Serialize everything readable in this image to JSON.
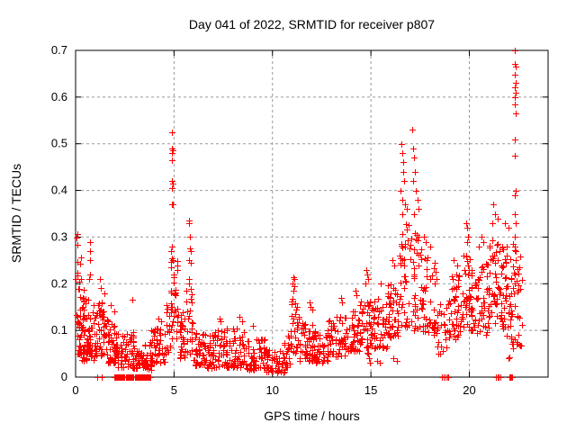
{
  "chart_data": {
    "type": "scatter",
    "title": "Day 041 of 2022, SRMTID for receiver p807",
    "xlabel": "GPS time / hours",
    "ylabel": "SRMTID / TECUs",
    "xlim": [
      0,
      24
    ],
    "ylim": [
      0,
      0.7
    ],
    "xticks": [
      0,
      5,
      10,
      15,
      20
    ],
    "yticks": [
      0,
      0.1,
      0.2,
      0.3,
      0.4,
      0.5,
      0.6,
      0.7
    ],
    "grid": true,
    "legend_position": "none",
    "marker": {
      "glyph": "plus",
      "color": "#ff0000",
      "size": 7
    },
    "grid_color": "#999999",
    "border_color": "#000000",
    "background_color": "#ffffff",
    "clusters": [
      [
        0.02,
        0.3,
        16,
        0.1,
        0.335,
        1.0
      ],
      [
        0.05,
        0.65,
        55,
        0.05,
        0.19,
        1.7
      ],
      [
        0.3,
        1.1,
        60,
        0.035,
        0.155,
        1.6
      ],
      [
        1.0,
        1.6,
        48,
        0.045,
        0.165,
        1.6
      ],
      [
        1.6,
        2.1,
        40,
        0.03,
        0.12,
        1.5
      ],
      [
        2.05,
        2.6,
        40,
        0.02,
        0.095,
        1.5
      ],
      [
        2.6,
        3.1,
        38,
        0.02,
        0.1,
        1.5
      ],
      [
        3.1,
        3.85,
        48,
        0.015,
        0.08,
        1.4
      ],
      [
        3.85,
        4.6,
        45,
        0.03,
        0.105,
        1.5
      ],
      [
        4.6,
        4.85,
        18,
        0.05,
        0.16,
        1.3
      ],
      [
        4.82,
        5.2,
        30,
        0.08,
        0.26,
        1.2
      ],
      [
        5.2,
        5.6,
        28,
        0.04,
        0.14,
        1.5
      ],
      [
        5.6,
        5.95,
        24,
        0.05,
        0.22,
        1.3
      ],
      [
        5.95,
        6.6,
        45,
        0.025,
        0.095,
        1.5
      ],
      [
        6.6,
        7.6,
        62,
        0.02,
        0.1,
        1.6
      ],
      [
        7.6,
        8.6,
        62,
        0.02,
        0.105,
        1.6
      ],
      [
        8.6,
        9.6,
        58,
        0.015,
        0.085,
        1.5
      ],
      [
        9.6,
        10.6,
        58,
        0.01,
        0.06,
        1.4
      ],
      [
        10.6,
        10.95,
        20,
        0.02,
        0.09,
        1.4
      ],
      [
        10.9,
        11.35,
        28,
        0.05,
        0.19,
        1.2
      ],
      [
        11.35,
        12.1,
        50,
        0.035,
        0.12,
        1.5
      ],
      [
        12.1,
        12.8,
        45,
        0.03,
        0.1,
        1.5
      ],
      [
        12.8,
        13.7,
        55,
        0.045,
        0.13,
        1.5
      ],
      [
        13.7,
        14.4,
        46,
        0.055,
        0.145,
        1.4
      ],
      [
        14.4,
        15.1,
        46,
        0.05,
        0.165,
        1.3
      ],
      [
        15.1,
        15.8,
        45,
        0.06,
        0.17,
        1.3
      ],
      [
        15.8,
        16.45,
        45,
        0.085,
        0.2,
        1.3
      ],
      [
        16.45,
        17.05,
        40,
        0.1,
        0.33,
        1.2
      ],
      [
        17.0,
        17.6,
        36,
        0.1,
        0.33,
        1.2
      ],
      [
        17.6,
        18.35,
        46,
        0.09,
        0.26,
        1.3
      ],
      [
        18.35,
        18.95,
        24,
        0.05,
        0.16,
        1.3
      ],
      [
        18.95,
        19.6,
        42,
        0.08,
        0.22,
        1.3
      ],
      [
        19.6,
        20.25,
        46,
        0.1,
        0.27,
        1.2
      ],
      [
        20.25,
        21.0,
        50,
        0.09,
        0.25,
        1.3
      ],
      [
        21.0,
        21.65,
        46,
        0.11,
        0.3,
        1.2
      ],
      [
        21.65,
        22.25,
        44,
        0.1,
        0.3,
        1.2
      ],
      [
        21.9,
        22.25,
        8,
        0.04,
        0.09,
        1.0
      ],
      [
        22.2,
        22.7,
        28,
        0.06,
        0.28,
        1.3
      ]
    ],
    "points": [
      [
        0.72,
        0.25
      ],
      [
        0.73,
        0.29
      ],
      [
        0.75,
        0.27
      ],
      [
        0.74,
        0.22
      ],
      [
        0.7,
        0.21
      ],
      [
        1.24,
        0.21
      ],
      [
        1.27,
        0.19
      ],
      [
        1.45,
        0.18
      ],
      [
        1.8,
        0.155
      ],
      [
        1.95,
        0.14
      ],
      [
        2.9,
        0.165
      ],
      [
        4.2,
        0.125
      ],
      [
        4.35,
        0.12
      ],
      [
        4.88,
        0.525
      ],
      [
        4.9,
        0.49
      ],
      [
        4.92,
        0.485
      ],
      [
        4.89,
        0.48
      ],
      [
        4.91,
        0.465
      ],
      [
        4.88,
        0.42
      ],
      [
        4.93,
        0.415
      ],
      [
        4.9,
        0.405
      ],
      [
        4.87,
        0.37
      ],
      [
        4.92,
        0.37
      ],
      [
        4.9,
        0.28
      ],
      [
        4.86,
        0.27
      ],
      [
        4.94,
        0.25
      ],
      [
        5.75,
        0.335
      ],
      [
        5.78,
        0.33
      ],
      [
        5.8,
        0.3
      ],
      [
        5.82,
        0.275
      ],
      [
        5.85,
        0.27
      ],
      [
        5.77,
        0.25
      ],
      [
        5.83,
        0.245
      ],
      [
        7.3,
        0.125
      ],
      [
        7.35,
        0.12
      ],
      [
        8.3,
        0.13
      ],
      [
        8.45,
        0.12
      ],
      [
        9.0,
        0.11
      ],
      [
        11.0,
        0.2
      ],
      [
        11.05,
        0.215
      ],
      [
        11.1,
        0.21
      ],
      [
        11.12,
        0.195
      ],
      [
        11.08,
        0.185
      ],
      [
        11.9,
        0.16
      ],
      [
        11.95,
        0.15
      ],
      [
        12.0,
        0.145
      ],
      [
        13.5,
        0.17
      ],
      [
        13.55,
        0.16
      ],
      [
        14.2,
        0.185
      ],
      [
        14.25,
        0.175
      ],
      [
        14.7,
        0.2
      ],
      [
        14.75,
        0.23
      ],
      [
        14.8,
        0.22
      ],
      [
        14.85,
        0.21
      ],
      [
        14.9,
        0.04
      ],
      [
        14.95,
        0.03
      ],
      [
        15.3,
        0.035
      ],
      [
        15.45,
        0.03
      ],
      [
        16.15,
        0.04
      ],
      [
        16.3,
        0.035
      ],
      [
        15.5,
        0.2
      ],
      [
        16.1,
        0.25
      ],
      [
        16.2,
        0.24
      ],
      [
        16.5,
        0.4
      ],
      [
        16.55,
        0.5
      ],
      [
        16.58,
        0.38
      ],
      [
        16.6,
        0.48
      ],
      [
        16.62,
        0.46
      ],
      [
        16.65,
        0.44
      ],
      [
        16.7,
        0.42
      ],
      [
        16.75,
        0.37
      ],
      [
        16.8,
        0.36
      ],
      [
        16.6,
        0.35
      ],
      [
        17.1,
        0.53
      ],
      [
        17.15,
        0.49
      ],
      [
        17.2,
        0.47
      ],
      [
        17.25,
        0.44
      ],
      [
        17.12,
        0.42
      ],
      [
        17.3,
        0.4
      ],
      [
        17.35,
        0.38
      ],
      [
        17.4,
        0.36
      ],
      [
        17.2,
        0.35
      ],
      [
        17.7,
        0.3
      ],
      [
        17.8,
        0.29
      ],
      [
        18.0,
        0.28
      ],
      [
        19.2,
        0.25
      ],
      [
        19.4,
        0.24
      ],
      [
        19.85,
        0.33
      ],
      [
        19.9,
        0.32
      ],
      [
        19.95,
        0.3
      ],
      [
        19.88,
        0.29
      ],
      [
        20.6,
        0.3
      ],
      [
        20.7,
        0.29
      ],
      [
        20.5,
        0.28
      ],
      [
        21.2,
        0.37
      ],
      [
        21.3,
        0.35
      ],
      [
        21.45,
        0.34
      ],
      [
        21.15,
        0.33
      ],
      [
        21.8,
        0.33
      ],
      [
        22.0,
        0.32
      ],
      [
        22.3,
        0.7
      ],
      [
        22.32,
        0.672
      ],
      [
        22.34,
        0.665
      ],
      [
        22.33,
        0.648
      ],
      [
        22.35,
        0.63
      ],
      [
        22.3,
        0.62
      ],
      [
        22.36,
        0.61
      ],
      [
        22.32,
        0.6
      ],
      [
        22.3,
        0.585
      ],
      [
        22.34,
        0.565
      ],
      [
        22.33,
        0.51
      ],
      [
        22.3,
        0.475
      ],
      [
        22.35,
        0.4
      ],
      [
        22.32,
        0.39
      ],
      [
        22.3,
        0.35
      ],
      [
        22.36,
        0.33
      ],
      [
        22.31,
        0.3
      ],
      [
        22.33,
        0.28
      ],
      [
        22.35,
        0.25
      ],
      [
        22.3,
        0.22
      ],
      [
        22.32,
        0.2
      ]
    ],
    "zero_runs": [
      [
        1.08,
        1.32,
        2
      ],
      [
        1.97,
        2.48,
        26
      ],
      [
        2.57,
        2.94,
        20
      ],
      [
        3.03,
        3.81,
        40
      ],
      [
        18.62,
        18.78,
        3
      ],
      [
        18.86,
        18.92,
        2
      ],
      [
        21.36,
        21.44,
        2
      ],
      [
        21.5,
        21.56,
        2
      ],
      [
        22.03,
        22.09,
        2
      ],
      [
        22.13,
        22.19,
        2
      ]
    ]
  }
}
